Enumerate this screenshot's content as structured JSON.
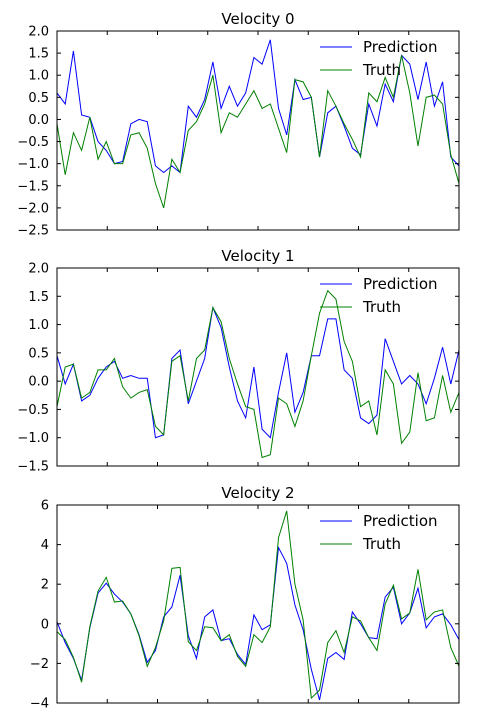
{
  "chart_data": [
    {
      "type": "line",
      "title": "Velocity 0",
      "xlabel": "",
      "ylabel": "",
      "ylim": [
        -2.5,
        2.0
      ],
      "yticks": [
        -2.5,
        -2.0,
        -1.5,
        -1.0,
        -0.5,
        0.0,
        0.5,
        1.0,
        1.5,
        2.0
      ],
      "ytick_labels": [
        "−2.5",
        "−2.0",
        "−1.5",
        "−1.0",
        "−0.5",
        "0.0",
        "0.5",
        "1.0",
        "1.5",
        "2.0"
      ],
      "xlim": [
        0,
        49
      ],
      "legend": "top-right",
      "grid": false,
      "series": [
        {
          "name": "Prediction",
          "color": "#0000ff",
          "values": [
            0.6,
            0.35,
            1.55,
            0.1,
            0.05,
            -0.5,
            -0.7,
            -1.0,
            -0.95,
            -0.1,
            0.0,
            -0.05,
            -1.05,
            -1.2,
            -1.05,
            -1.2,
            0.3,
            0.05,
            0.45,
            1.3,
            0.25,
            0.75,
            0.3,
            0.6,
            1.4,
            1.25,
            1.8,
            0.25,
            -0.35,
            0.9,
            0.45,
            0.5,
            -0.85,
            0.15,
            0.3,
            -0.15,
            -0.65,
            -0.8,
            0.35,
            -0.15,
            0.8,
            0.4,
            1.45,
            1.25,
            0.45,
            1.3,
            0.3,
            0.85,
            -0.85,
            -1.05
          ]
        },
        {
          "name": "Truth",
          "color": "#008000",
          "values": [
            -0.1,
            -1.25,
            -0.3,
            -0.7,
            0.05,
            -0.9,
            -0.5,
            -1.0,
            -1.0,
            -0.35,
            -0.3,
            -0.65,
            -1.45,
            -2.0,
            -0.9,
            -1.2,
            -0.25,
            -0.05,
            0.35,
            1.0,
            -0.3,
            0.15,
            0.05,
            0.35,
            0.65,
            0.25,
            0.35,
            -0.2,
            -0.75,
            0.9,
            0.85,
            0.5,
            -0.85,
            0.65,
            0.3,
            -0.1,
            -0.45,
            -0.85,
            0.6,
            0.4,
            0.95,
            0.5,
            1.45,
            0.6,
            -0.6,
            0.5,
            0.55,
            0.35,
            -0.8,
            -1.45
          ]
        }
      ]
    },
    {
      "type": "line",
      "title": "Velocity 1",
      "xlabel": "",
      "ylabel": "",
      "ylim": [
        -1.5,
        2.0
      ],
      "yticks": [
        -1.5,
        -1.0,
        -0.5,
        0.0,
        0.5,
        1.0,
        1.5,
        2.0
      ],
      "ytick_labels": [
        "−1.5",
        "−1.0",
        "−0.5",
        "0.0",
        "0.5",
        "1.0",
        "1.5",
        "2.0"
      ],
      "xlim": [
        0,
        49
      ],
      "legend": "top-right",
      "grid": false,
      "series": [
        {
          "name": "Prediction",
          "color": "#0000ff",
          "values": [
            0.45,
            -0.05,
            0.3,
            -0.35,
            -0.25,
            0.05,
            0.25,
            0.35,
            0.05,
            0.1,
            0.05,
            0.05,
            -1.0,
            -0.95,
            0.4,
            0.55,
            -0.4,
            0.0,
            0.4,
            1.3,
            0.95,
            0.25,
            -0.35,
            -0.65,
            0.25,
            -0.85,
            -1.0,
            -0.2,
            0.5,
            -0.55,
            -0.2,
            0.45,
            0.45,
            1.1,
            1.1,
            0.2,
            0.05,
            -0.65,
            -0.75,
            -0.6,
            0.75,
            0.35,
            -0.05,
            0.1,
            -0.05,
            -0.4,
            0.05,
            0.6,
            -0.05,
            0.55
          ]
        },
        {
          "name": "Truth",
          "color": "#008000",
          "values": [
            -0.45,
            0.25,
            0.3,
            -0.3,
            -0.2,
            0.2,
            0.2,
            0.4,
            -0.1,
            -0.3,
            -0.2,
            -0.15,
            -0.8,
            -0.95,
            0.35,
            0.45,
            -0.35,
            0.4,
            0.55,
            1.3,
            1.05,
            0.4,
            -0.05,
            -0.45,
            -0.5,
            -1.35,
            -1.3,
            -0.3,
            -0.4,
            -0.8,
            -0.35,
            0.45,
            1.2,
            1.6,
            1.45,
            0.7,
            0.35,
            -0.45,
            -0.35,
            -0.95,
            0.2,
            -0.05,
            -1.1,
            -0.9,
            0.15,
            -0.7,
            -0.65,
            0.1,
            -0.55,
            -0.2
          ]
        }
      ]
    },
    {
      "type": "line",
      "title": "Velocity 2",
      "xlabel": "",
      "ylabel": "",
      "ylim": [
        -4,
        6
      ],
      "yticks": [
        -4,
        -2,
        0,
        2,
        4,
        6
      ],
      "ytick_labels": [
        "−4",
        "−2",
        "0",
        "2",
        "4",
        "6"
      ],
      "xlim": [
        0,
        49
      ],
      "legend": "top-right",
      "grid": false,
      "series": [
        {
          "name": "Prediction",
          "color": "#0000ff",
          "values": [
            0.1,
            -0.95,
            -1.75,
            -2.85,
            -0.2,
            1.55,
            2.05,
            1.5,
            1.1,
            0.5,
            -0.55,
            -1.95,
            -1.35,
            0.35,
            0.85,
            2.45,
            -0.6,
            -1.75,
            0.35,
            0.7,
            -0.85,
            -0.75,
            -1.55,
            -2.05,
            0.45,
            -0.3,
            -0.05,
            3.85,
            3.05,
            0.95,
            -0.3,
            -2.3,
            -3.85,
            -1.75,
            -1.45,
            -1.8,
            0.6,
            0.0,
            -0.7,
            -0.75,
            1.35,
            1.85,
            0.0,
            0.55,
            1.8,
            -0.2,
            0.35,
            0.5,
            -0.05,
            -0.8
          ]
        },
        {
          "name": "Truth",
          "color": "#008000",
          "values": [
            -0.4,
            -0.8,
            -1.7,
            -2.95,
            -0.15,
            1.65,
            2.35,
            1.1,
            1.15,
            0.5,
            -0.6,
            -2.15,
            -1.2,
            0.15,
            2.8,
            2.85,
            -0.9,
            -1.35,
            -0.15,
            -0.2,
            -0.85,
            -0.55,
            -1.65,
            -2.15,
            -0.55,
            -0.95,
            -0.15,
            4.35,
            5.7,
            2.0,
            0.2,
            -3.75,
            -3.35,
            -0.95,
            -0.35,
            -1.45,
            0.35,
            0.15,
            -0.7,
            -1.35,
            1.0,
            1.95,
            0.25,
            0.55,
            2.75,
            0.2,
            0.6,
            0.7,
            -1.2,
            -2.15
          ]
        }
      ]
    }
  ]
}
